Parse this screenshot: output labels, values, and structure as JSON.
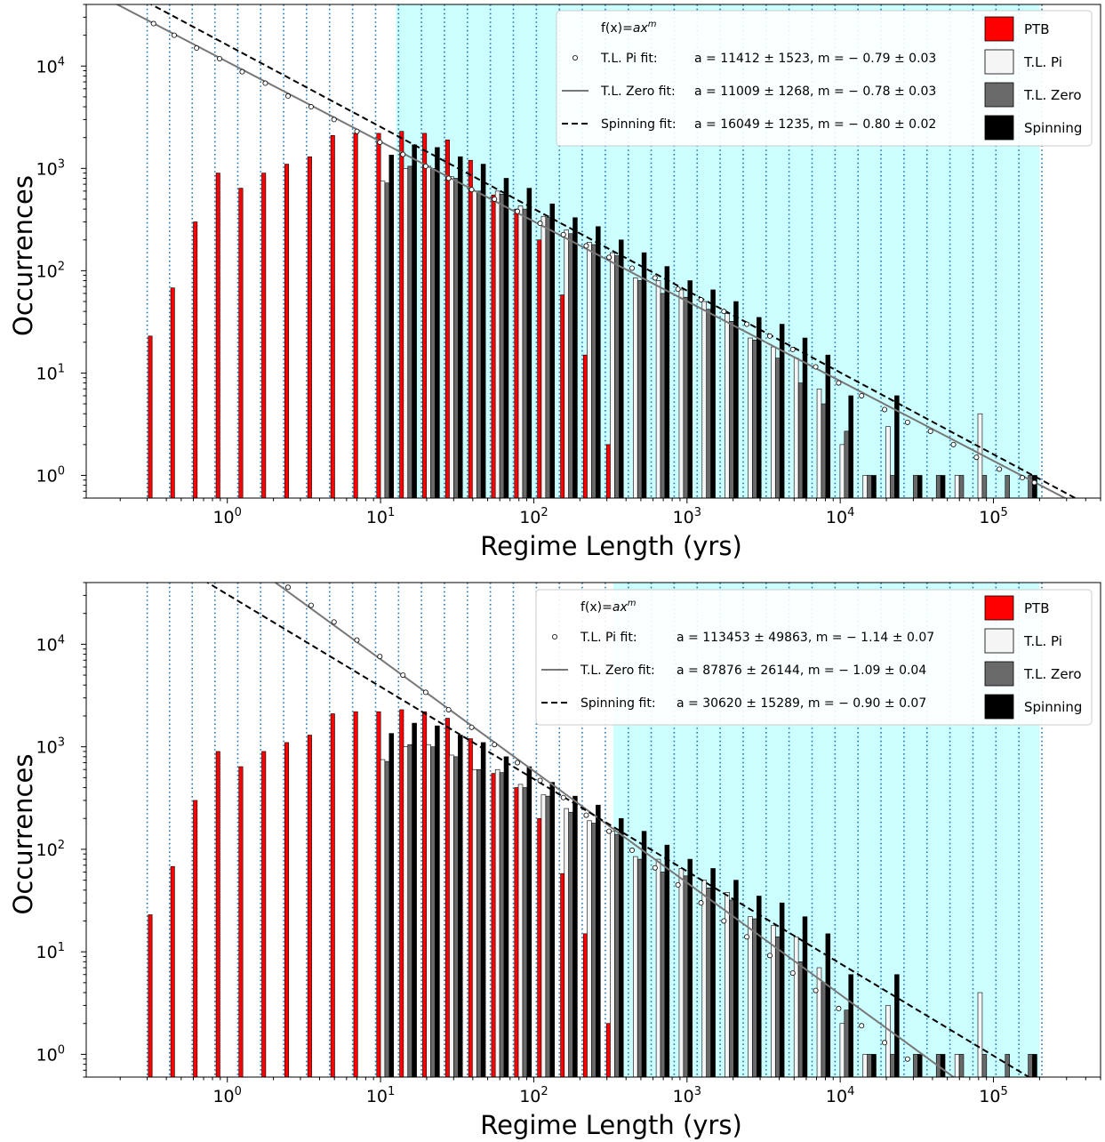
{
  "colors": {
    "ptb": "#ff0000",
    "tl_pi": "#f5f5f5",
    "tl_zero": "#696969",
    "spinning": "#000000",
    "highlight": "#ccffff",
    "gridline": "#1f77b4",
    "fit_line": "#777777"
  },
  "chart_data": [
    {
      "type": "bar",
      "xlabel": "Regime Length (yrs)",
      "ylabel": "Occurrences",
      "xscale": "log",
      "yscale": "log",
      "xlim": [
        0.12,
        500000
      ],
      "ylim": [
        0.6,
        40000
      ],
      "xticks": [
        {
          "v": 1,
          "m": "0"
        },
        {
          "v": 10,
          "m": "1"
        },
        {
          "v": 100,
          "m": "2"
        },
        {
          "v": 1000,
          "m": "3"
        },
        {
          "v": 10000,
          "m": "4"
        },
        {
          "v": 100000,
          "m": "5"
        }
      ],
      "yticks": [
        {
          "v": 1,
          "m": "0"
        },
        {
          "v": 10,
          "m": "1"
        },
        {
          "v": 100,
          "m": "2"
        },
        {
          "v": 1000,
          "m": "3"
        },
        {
          "v": 10000,
          "m": "4"
        }
      ],
      "tick_base": "10",
      "highlight_range": [
        12.6,
        200000
      ],
      "grid": "vertical dotted lines at each bin edge",
      "legend_placement": "top-right",
      "bin_edges": [
        0.3,
        0.42,
        0.59,
        0.83,
        1.17,
        1.65,
        2.33,
        3.29,
        4.65,
        6.57,
        9.28,
        13.1,
        18.5,
        26.1,
        36.9,
        52.1,
        73.6,
        104,
        147,
        207,
        293,
        414,
        584,
        825,
        1165,
        1646,
        2325,
        3284,
        4638,
        6551,
        9253,
        13069,
        18459,
        26073,
        36827,
        52016,
        73470,
        103774,
        146575,
        207028
      ],
      "series": [
        {
          "name": "PTB",
          "values": [
            23,
            68,
            300,
            900,
            640,
            900,
            1100,
            1300,
            2100,
            2200,
            2200,
            2300,
            2200,
            1900,
            1200,
            550,
            400,
            200,
            58,
            15,
            2,
            0,
            0,
            0,
            0,
            0,
            0,
            0,
            0,
            0,
            0,
            0,
            0,
            0,
            0,
            0,
            0,
            0,
            0
          ]
        },
        {
          "name": "T.L. Pi",
          "values": [
            0,
            0,
            0,
            0,
            0,
            0,
            0,
            0,
            0,
            0,
            750,
            1000,
            1050,
            830,
            600,
            600,
            430,
            340,
            250,
            190,
            150,
            85,
            80,
            65,
            50,
            38,
            22,
            18,
            14,
            7,
            2,
            1,
            3,
            0,
            0,
            1,
            4,
            0,
            0
          ]
        },
        {
          "name": "T.L. Zero",
          "values": [
            0,
            0,
            0,
            0,
            0,
            0,
            0,
            0,
            0,
            0,
            720,
            1050,
            1000,
            800,
            600,
            560,
            400,
            330,
            230,
            180,
            140,
            80,
            60,
            55,
            42,
            32,
            21,
            14,
            8,
            5,
            2.7,
            1,
            1,
            1,
            1,
            1,
            1,
            1,
            1
          ]
        },
        {
          "name": "Spinning",
          "values": [
            0,
            0,
            0,
            0,
            0,
            0,
            0,
            0,
            0,
            0,
            1350,
            1700,
            1600,
            1300,
            1100,
            800,
            640,
            450,
            330,
            270,
            200,
            150,
            110,
            80,
            65,
            50,
            35,
            30,
            22,
            15,
            6,
            1,
            6,
            1,
            1,
            0,
            0,
            0,
            1
          ]
        }
      ],
      "fit_points": [
        [
          0.33,
          26000
        ],
        [
          0.45,
          20000
        ],
        [
          0.63,
          15000
        ],
        [
          0.89,
          11800
        ],
        [
          1.25,
          8800
        ],
        [
          1.77,
          6800
        ],
        [
          2.49,
          5100
        ],
        [
          3.52,
          4000
        ],
        [
          4.97,
          3000
        ],
        [
          7.01,
          2300
        ],
        [
          9.9,
          1800
        ],
        [
          14,
          1370
        ],
        [
          19.7,
          1050
        ],
        [
          27.8,
          800
        ],
        [
          39.3,
          620
        ],
        [
          55.4,
          500
        ],
        [
          78.2,
          380
        ],
        [
          110,
          290
        ],
        [
          156,
          225
        ],
        [
          220,
          175
        ],
        [
          310,
          135
        ],
        [
          438,
          106
        ],
        [
          618,
          85
        ],
        [
          873,
          66
        ],
        [
          1233,
          52
        ],
        [
          1740,
          40
        ],
        [
          2457,
          30
        ],
        [
          3469,
          23
        ],
        [
          4898,
          17
        ],
        [
          6916,
          11.5
        ],
        [
          9765,
          8
        ],
        [
          13789,
          6
        ],
        [
          19469,
          4.4
        ],
        [
          27489,
          3.3
        ],
        [
          38814,
          2.7
        ],
        [
          54806,
          2
        ],
        [
          77386,
          1.5
        ],
        [
          109268,
          1.15
        ],
        [
          154287,
          0.95
        ],
        [
          185000,
          0.85
        ]
      ],
      "fit_lines": [
        {
          "a": 11009,
          "m": -0.78,
          "style": "solid"
        },
        {
          "a": 16049,
          "m": -0.8,
          "style": "dashed"
        }
      ],
      "legend_fit_header_pre": "f(x)=",
      "legend_fit_header_var": "ax",
      "legend_fit_header_exp": "m",
      "legend_fits": [
        {
          "label": "T.L. Pi fit:",
          "formula": "a = 11412 ± 1523, m = − 0.79 ± 0.03"
        },
        {
          "label": "T.L. Zero fit:",
          "formula": "a = 11009 ± 1268, m = − 0.78 ± 0.03"
        },
        {
          "label": "Spinning fit:",
          "formula": "a = 16049 ± 1235, m = − 0.80 ± 0.02"
        }
      ],
      "legend_bars": [
        "PTB",
        "T.L. Pi",
        "T.L. Zero",
        "Spinning"
      ]
    },
    {
      "type": "bar",
      "xlabel": "Regime Length (yrs)",
      "ylabel": "Occurrences",
      "xscale": "log",
      "yscale": "log",
      "xlim": [
        0.12,
        500000
      ],
      "ylim": [
        0.6,
        40000
      ],
      "xticks": [
        {
          "v": 1,
          "m": "0"
        },
        {
          "v": 10,
          "m": "1"
        },
        {
          "v": 100,
          "m": "2"
        },
        {
          "v": 1000,
          "m": "3"
        },
        {
          "v": 10000,
          "m": "4"
        },
        {
          "v": 100000,
          "m": "5"
        }
      ],
      "yticks": [
        {
          "v": 1,
          "m": "0"
        },
        {
          "v": 10,
          "m": "1"
        },
        {
          "v": 100,
          "m": "2"
        },
        {
          "v": 1000,
          "m": "3"
        },
        {
          "v": 10000,
          "m": "4"
        }
      ],
      "tick_base": "10",
      "highlight_range": [
        330,
        200000
      ],
      "grid": "vertical dotted lines at each bin edge",
      "legend_placement": "top-right",
      "bin_edges": [
        0.3,
        0.42,
        0.59,
        0.83,
        1.17,
        1.65,
        2.33,
        3.29,
        4.65,
        6.57,
        9.28,
        13.1,
        18.5,
        26.1,
        36.9,
        52.1,
        73.6,
        104,
        147,
        207,
        293,
        414,
        584,
        825,
        1165,
        1646,
        2325,
        3284,
        4638,
        6551,
        9253,
        13069,
        18459,
        26073,
        36827,
        52016,
        73470,
        103774,
        146575,
        207028
      ],
      "series": [
        {
          "name": "PTB",
          "values": [
            23,
            68,
            300,
            900,
            640,
            900,
            1100,
            1300,
            2100,
            2200,
            2200,
            2300,
            2200,
            1900,
            1200,
            550,
            400,
            200,
            58,
            15,
            2,
            0,
            0,
            0,
            0,
            0,
            0,
            0,
            0,
            0,
            0,
            0,
            0,
            0,
            0,
            0,
            0,
            0,
            0
          ]
        },
        {
          "name": "T.L. Pi",
          "values": [
            0,
            0,
            0,
            0,
            0,
            0,
            0,
            0,
            0,
            0,
            750,
            1000,
            1050,
            830,
            600,
            600,
            430,
            340,
            250,
            190,
            150,
            85,
            80,
            65,
            50,
            38,
            22,
            18,
            14,
            7,
            2,
            1,
            3,
            0,
            0,
            1,
            4,
            0,
            0
          ]
        },
        {
          "name": "T.L. Zero",
          "values": [
            0,
            0,
            0,
            0,
            0,
            0,
            0,
            0,
            0,
            0,
            720,
            1050,
            1000,
            800,
            600,
            560,
            400,
            330,
            230,
            180,
            140,
            80,
            60,
            55,
            42,
            32,
            21,
            14,
            8,
            5,
            2.7,
            1,
            1,
            1,
            1,
            1,
            1,
            1,
            1
          ]
        },
        {
          "name": "Spinning",
          "values": [
            0,
            0,
            0,
            0,
            0,
            0,
            0,
            0,
            0,
            0,
            1350,
            1700,
            1600,
            1300,
            1100,
            800,
            640,
            450,
            330,
            270,
            200,
            150,
            110,
            80,
            65,
            50,
            35,
            30,
            22,
            15,
            6,
            1,
            6,
            1,
            1,
            0,
            0,
            0,
            1
          ]
        }
      ],
      "fit_points": [
        [
          2.49,
          36000
        ],
        [
          3.52,
          24000
        ],
        [
          4.97,
          16500
        ],
        [
          7.01,
          11000
        ],
        [
          9.9,
          7600
        ],
        [
          14,
          5000
        ],
        [
          19.7,
          3400
        ],
        [
          27.8,
          2300
        ],
        [
          39.3,
          1550
        ],
        [
          55.4,
          1050
        ],
        [
          78.2,
          700
        ],
        [
          110,
          470
        ],
        [
          156,
          320
        ],
        [
          220,
          215
        ],
        [
          310,
          150
        ],
        [
          438,
          98
        ],
        [
          618,
          66
        ],
        [
          873,
          45
        ],
        [
          1233,
          30
        ],
        [
          1740,
          20
        ],
        [
          2457,
          14
        ],
        [
          3469,
          9.2
        ],
        [
          4898,
          6.2
        ],
        [
          6916,
          4.2
        ],
        [
          9765,
          2.8
        ],
        [
          13789,
          1.9
        ],
        [
          19469,
          1.3
        ],
        [
          27489,
          0.9
        ]
      ],
      "fit_lines": [
        {
          "a": 87876,
          "m": -1.09,
          "style": "solid"
        },
        {
          "a": 30620,
          "m": -0.9,
          "style": "dashed"
        }
      ],
      "legend_fit_header_pre": "f(x)=",
      "legend_fit_header_var": "ax",
      "legend_fit_header_exp": "m",
      "legend_fits": [
        {
          "label": "T.L. Pi fit:",
          "formula": "a = 113453 ± 49863, m = − 1.14 ± 0.07"
        },
        {
          "label": "T.L. Zero fit:",
          "formula": "a = 87876 ± 26144, m = − 1.09 ± 0.04"
        },
        {
          "label": "Spinning fit:",
          "formula": "a = 30620 ± 15289, m = − 0.90 ± 0.07"
        }
      ],
      "legend_bars": [
        "PTB",
        "T.L. Pi",
        "T.L. Zero",
        "Spinning"
      ]
    }
  ]
}
